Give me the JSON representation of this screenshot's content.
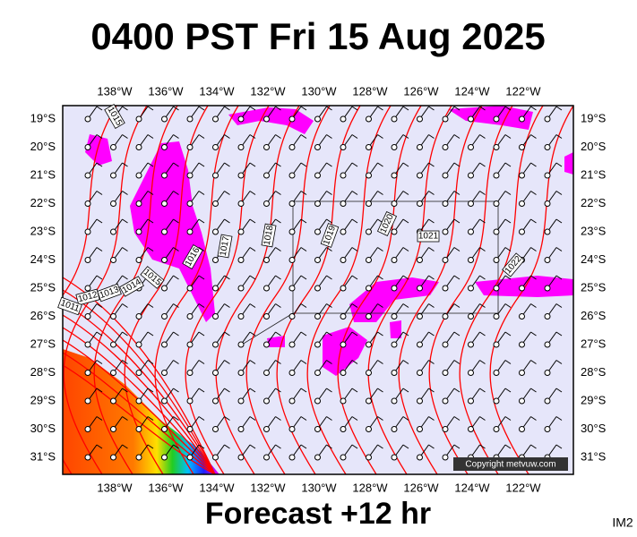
{
  "header": {
    "title": "0400 PST Fri 15 Aug 2025"
  },
  "map": {
    "lon_labels": [
      "138°W",
      "136°W",
      "134°W",
      "132°W",
      "130°W",
      "128°W",
      "126°W",
      "124°W",
      "122°W"
    ],
    "lat_labels": [
      "19°S",
      "20°S",
      "21°S",
      "22°S",
      "23°S",
      "24°S",
      "25°S",
      "26°S",
      "27°S",
      "28°S",
      "29°S",
      "30°S",
      "31°S"
    ],
    "isobar_labels": [
      "1015",
      "1016",
      "1017",
      "1018",
      "1019",
      "1020",
      "1021",
      "1022",
      "1015",
      "1014",
      "1013",
      "1012",
      "1011"
    ],
    "copyright": "Copyright metvuw.com"
  },
  "footer": {
    "forecast": "Forecast +12 hr",
    "tag": "IM2"
  }
}
